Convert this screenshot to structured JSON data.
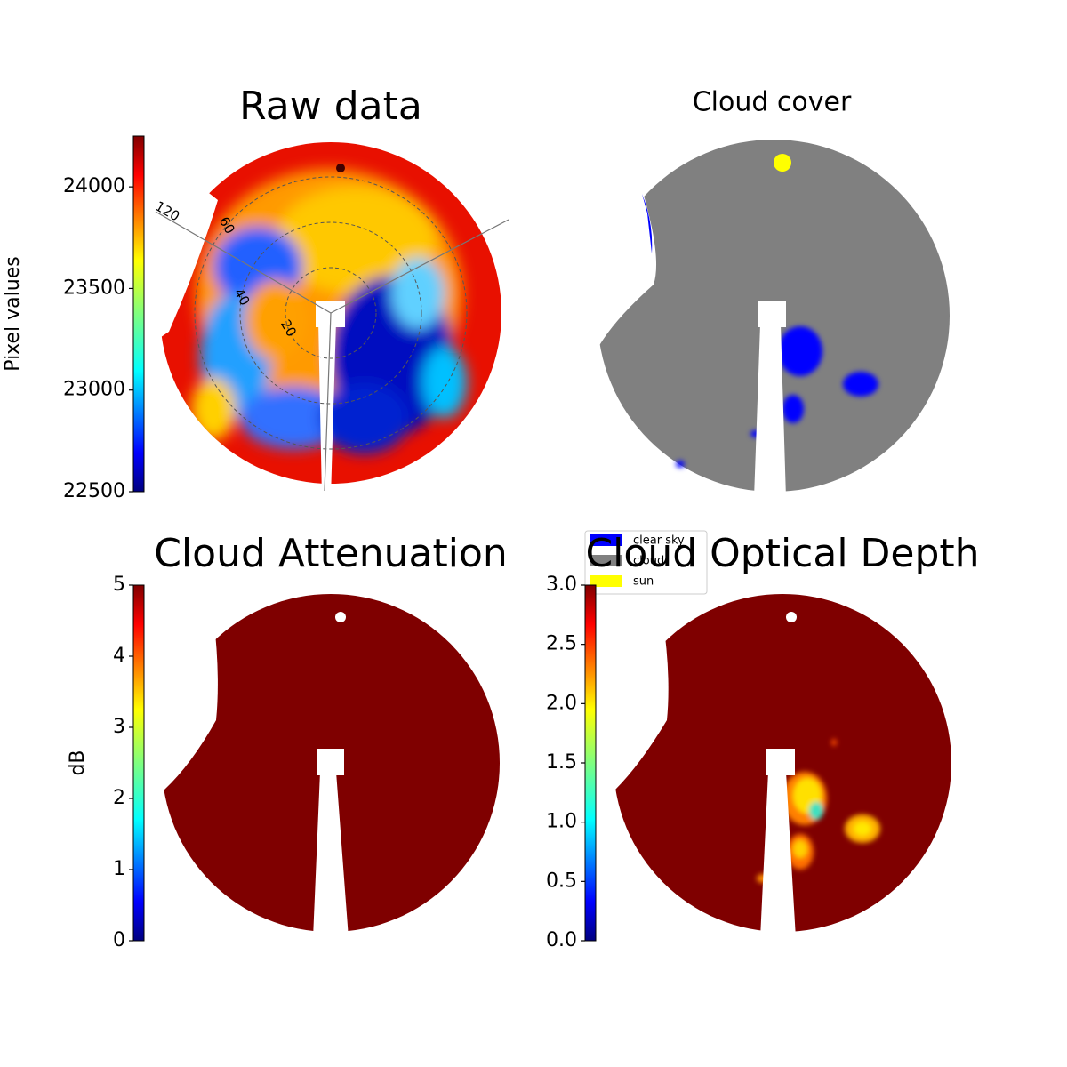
{
  "chart_data": [
    {
      "type": "image",
      "title": "Raw data",
      "colorbar": {
        "label": "Pixel values",
        "lim": [
          22500,
          24250
        ],
        "ticks": [
          22500,
          23000,
          23500,
          24000
        ],
        "colormap": "jet"
      },
      "rticks": [
        20,
        40,
        60
      ],
      "angle_ticks": [
        120
      ]
    },
    {
      "type": "image",
      "title": "Cloud cover",
      "legend": [
        {
          "name": "clear sky",
          "color": "#0000ff"
        },
        {
          "name": "cloud",
          "color": "#808080"
        },
        {
          "name": "sun",
          "color": "#ffff00"
        }
      ]
    },
    {
      "type": "image",
      "title": "Cloud Attenuation",
      "colorbar": {
        "label": "dB",
        "lim": [
          0,
          5
        ],
        "ticks": [
          0,
          1,
          2,
          3,
          4,
          5
        ],
        "colormap": "jet"
      }
    },
    {
      "type": "image",
      "title": "Cloud Optical Depth",
      "colorbar": {
        "lim": [
          0,
          3
        ],
        "ticks": [
          {
            "value": 0,
            "label": "0.0"
          },
          0.5,
          {
            "value": 1,
            "label": "1.0"
          },
          1.5,
          {
            "value": 2,
            "label": "2.0"
          },
          2.5,
          {
            "value": 3,
            "label": "3.0"
          }
        ],
        "colormap": "jet"
      }
    }
  ]
}
